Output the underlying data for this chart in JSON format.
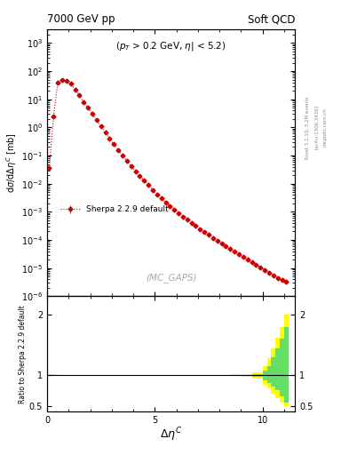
{
  "title_left": "7000 GeV pp",
  "title_right": "Soft QCD",
  "annotation_text": "($p_T$ > 0.2 GeV, $\\eta$| < 5.2)",
  "watermark": "(MC_GAPS)",
  "ylabel_main": "dσ/dΔη$^C$ [mb]",
  "ylabel_ratio": "Ratio to Sherpa 2.2.9 default",
  "xlabel": "Δη$^C$",
  "legend_label": "Sherpa 2.2.9 default",
  "line_color": "#cc0000",
  "xlim": [
    0,
    11.5
  ],
  "ylim_main": [
    1e-06,
    3000.0
  ],
  "ylim_ratio": [
    0.4,
    2.3
  ],
  "ratio_yticks": [
    0.5,
    1.0,
    2.0
  ],
  "x_data": [
    0.1,
    0.3,
    0.5,
    0.7,
    0.9,
    1.1,
    1.3,
    1.5,
    1.7,
    1.9,
    2.1,
    2.3,
    2.5,
    2.7,
    2.9,
    3.1,
    3.3,
    3.5,
    3.7,
    3.9,
    4.1,
    4.3,
    4.5,
    4.7,
    4.9,
    5.1,
    5.3,
    5.5,
    5.7,
    5.9,
    6.1,
    6.3,
    6.5,
    6.7,
    6.9,
    7.1,
    7.3,
    7.5,
    7.7,
    7.9,
    8.1,
    8.3,
    8.5,
    8.7,
    8.9,
    9.1,
    9.3,
    9.5,
    9.7,
    9.9,
    10.1,
    10.3,
    10.5,
    10.7,
    10.9,
    11.1
  ],
  "y_data": [
    0.035,
    2.5,
    40.0,
    50.0,
    45.0,
    35.0,
    22.0,
    14.0,
    8.0,
    5.0,
    3.0,
    1.8,
    1.1,
    0.65,
    0.4,
    0.25,
    0.16,
    0.1,
    0.065,
    0.042,
    0.028,
    0.019,
    0.013,
    0.009,
    0.006,
    0.0042,
    0.003,
    0.0022,
    0.0016,
    0.0012,
    0.0009,
    0.00068,
    0.00052,
    0.0004,
    0.00031,
    0.00024,
    0.00019,
    0.00015,
    0.00012,
    9.5e-05,
    7.5e-05,
    6e-05,
    4.8e-05,
    3.9e-05,
    3.1e-05,
    2.5e-05,
    2e-05,
    1.6e-05,
    1.3e-05,
    1.05e-05,
    8.5e-06,
    6.8e-06,
    5.5e-06,
    4.5e-06,
    3.8e-06,
    3.2e-06
  ],
  "yerr_data": [
    0.003,
    0.1,
    1.5,
    2.0,
    1.8,
    1.4,
    0.9,
    0.5,
    0.3,
    0.2,
    0.12,
    0.07,
    0.04,
    0.025,
    0.015,
    0.01,
    0.006,
    0.004,
    0.0025,
    0.0016,
    0.001,
    0.0007,
    0.0005,
    0.00035,
    0.00024,
    0.00016,
    0.00012,
    9e-05,
    6e-05,
    5e-05,
    3.5e-05,
    2.7e-05,
    2e-05,
    1.6e-05,
    1.2e-05,
    9e-06,
    7e-06,
    6e-06,
    5e-06,
    4e-06,
    3e-06,
    2.5e-06,
    2e-06,
    1.6e-06,
    1.3e-06,
    1e-06,
    8e-07,
    6.5e-07,
    5e-07,
    4.2e-07,
    3.5e-07,
    2.8e-07,
    2.3e-07,
    1.9e-07,
    1.6e-07,
    1.4e-07
  ],
  "ratio_x_edges": [
    0.0,
    0.5,
    1.0,
    1.5,
    2.0,
    2.5,
    3.0,
    3.5,
    4.0,
    4.5,
    5.0,
    5.5,
    6.0,
    6.5,
    7.0,
    7.5,
    8.0,
    8.5,
    9.0,
    9.5,
    10.0,
    10.2,
    10.4,
    10.6,
    10.8,
    11.0,
    11.2
  ],
  "ratio_green_lo": [
    0.995,
    0.997,
    0.998,
    0.998,
    0.998,
    0.999,
    0.999,
    0.999,
    0.999,
    0.999,
    0.999,
    0.999,
    0.999,
    0.999,
    0.998,
    0.998,
    0.997,
    0.995,
    0.99,
    0.975,
    0.92,
    0.88,
    0.82,
    0.75,
    0.65,
    0.55,
    0.5
  ],
  "ratio_green_hi": [
    1.005,
    1.003,
    1.002,
    1.002,
    1.002,
    1.001,
    1.001,
    1.001,
    1.001,
    1.001,
    1.001,
    1.001,
    1.001,
    1.001,
    1.002,
    1.002,
    1.003,
    1.005,
    1.01,
    1.025,
    1.08,
    1.15,
    1.3,
    1.45,
    1.6,
    1.8,
    2.0
  ],
  "ratio_yellow_lo": [
    0.985,
    0.99,
    0.992,
    0.993,
    0.994,
    0.995,
    0.996,
    0.996,
    0.997,
    0.997,
    0.997,
    0.997,
    0.997,
    0.997,
    0.996,
    0.995,
    0.993,
    0.988,
    0.975,
    0.95,
    0.85,
    0.78,
    0.7,
    0.62,
    0.55,
    0.5,
    0.45
  ],
  "ratio_yellow_hi": [
    1.015,
    1.01,
    1.008,
    1.007,
    1.006,
    1.005,
    1.004,
    1.004,
    1.003,
    1.003,
    1.003,
    1.003,
    1.003,
    1.003,
    1.004,
    1.005,
    1.007,
    1.012,
    1.025,
    1.05,
    1.15,
    1.28,
    1.45,
    1.62,
    1.8,
    2.0,
    2.2
  ],
  "bg_color": "#ffffff"
}
